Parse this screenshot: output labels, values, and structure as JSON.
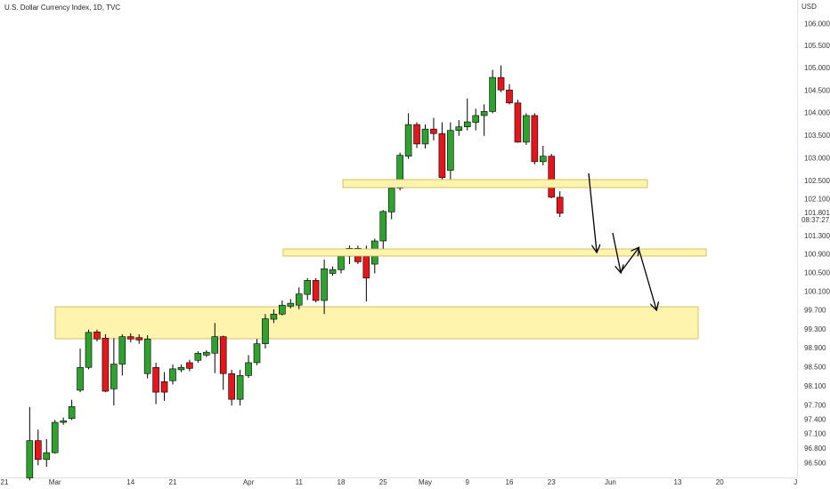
{
  "chart_data": {
    "type": "candlestick",
    "title": "U.S. Dollar Currency Index, 1D, TVC",
    "currency": "USD",
    "log_scale": true,
    "grid": false,
    "up_color": "#2ea12e",
    "down_color": "#e3161b",
    "ylim": [
      96.21,
      106.55
    ],
    "yticks": [
      {
        "value": 106.0,
        "label": "106.000"
      },
      {
        "value": 105.5,
        "label": "105.500"
      },
      {
        "value": 105.0,
        "label": "105.000"
      },
      {
        "value": 104.5,
        "label": "104.500"
      },
      {
        "value": 104.0,
        "label": "104.000"
      },
      {
        "value": 103.5,
        "label": "103.500"
      },
      {
        "value": 103.0,
        "label": "103.000"
      },
      {
        "value": 102.5,
        "label": "102.500"
      },
      {
        "value": 102.1,
        "label": "102.100"
      },
      {
        "value": 101.3,
        "label": "101.300"
      },
      {
        "value": 100.9,
        "label": "100.900"
      },
      {
        "value": 100.5,
        "label": "100.500"
      },
      {
        "value": 100.1,
        "label": "100.100"
      },
      {
        "value": 99.7,
        "label": "99.700"
      },
      {
        "value": 99.3,
        "label": "99.300"
      },
      {
        "value": 98.9,
        "label": "98.900"
      },
      {
        "value": 98.5,
        "label": "98.500"
      },
      {
        "value": 98.1,
        "label": "98.100"
      },
      {
        "value": 97.7,
        "label": "97.700"
      },
      {
        "value": 97.4,
        "label": "97.400"
      },
      {
        "value": 97.1,
        "label": "97.100"
      },
      {
        "value": 96.8,
        "label": "96.800"
      },
      {
        "value": 96.5,
        "label": "96.500"
      }
    ],
    "last_price": {
      "value": 101.801,
      "label": "101.801"
    },
    "countdown": "08:37:27",
    "categories": [
      "21",
      null,
      null,
      null,
      null,
      null,
      "Mar",
      null,
      null,
      null,
      null,
      null,
      null,
      null,
      null,
      "14",
      null,
      null,
      null,
      null,
      "21",
      null,
      null,
      null,
      null,
      null,
      null,
      null,
      null,
      "Apr",
      null,
      null,
      null,
      null,
      null,
      "11",
      null,
      null,
      null,
      null,
      "18",
      null,
      null,
      null,
      null,
      "25",
      null,
      null,
      null,
      null,
      "May",
      null,
      null,
      null,
      null,
      "9",
      null,
      null,
      null,
      null,
      "16",
      null,
      null,
      null,
      null,
      "23",
      null,
      null,
      null,
      null,
      null,
      null,
      "Jun",
      null,
      null,
      null,
      null,
      null,
      null,
      null,
      "13",
      null,
      null,
      null,
      null,
      "20",
      null,
      null,
      null,
      null,
      null,
      null,
      null,
      null,
      "J"
    ],
    "open": [
      null,
      null,
      null,
      96.2,
      96.97,
      96.58,
      96.72,
      97.35,
      97.43,
      98.02,
      98.5,
      99.25,
      99.12,
      98.05,
      98.57,
      99.15,
      99.13,
      98.37,
      98.5,
      98.2,
      98.22,
      98.45,
      98.6,
      98.65,
      98.76,
      98.8,
      99.15,
      98.37,
      97.83,
      98.33,
      98.6,
      99.0,
      99.52,
      99.63,
      99.8,
      99.82,
      100.05,
      100.35,
      99.92,
      100.5,
      100.58,
      100.87,
      101.04,
      101.02,
      100.7,
      101.2,
      101.83,
      102.35,
      103.05,
      103.75,
      103.32,
      103.65,
      103.55,
      102.74,
      103.62,
      103.7,
      103.8,
      103.95,
      104.04,
      104.8,
      104.52,
      104.23,
      103.36,
      103.95,
      102.93,
      103.05,
      102.15,
      null,
      null,
      null,
      null,
      null,
      null,
      null,
      null,
      null,
      null,
      null,
      null,
      null,
      null,
      null,
      null,
      null,
      null,
      null,
      null,
      null,
      null,
      null,
      null,
      null,
      null,
      null,
      null
    ],
    "high": [
      null,
      null,
      null,
      97.67,
      97.2,
      97.0,
      97.4,
      97.45,
      97.82,
      98.9,
      99.3,
      99.3,
      99.2,
      99.12,
      99.2,
      99.22,
      99.2,
      99.18,
      98.6,
      98.4,
      98.56,
      98.56,
      98.66,
      98.84,
      98.86,
      99.44,
      99.17,
      98.45,
      98.45,
      98.76,
      99.1,
      99.63,
      99.73,
      99.92,
      99.95,
      100.2,
      100.4,
      100.4,
      100.8,
      100.65,
      100.9,
      101.1,
      101.1,
      101.1,
      101.25,
      101.87,
      102.45,
      103.13,
      104.0,
      103.8,
      103.75,
      103.9,
      103.8,
      103.8,
      103.85,
      104.33,
      104.1,
      104.2,
      104.97,
      105.07,
      104.65,
      104.3,
      104.0,
      104.0,
      103.28,
      103.1,
      102.28,
      null,
      null,
      null,
      null,
      null,
      null,
      null,
      null,
      null,
      null,
      null,
      null,
      null,
      null,
      null,
      null,
      null,
      null,
      null,
      null,
      null,
      null,
      null,
      null,
      null,
      null,
      null,
      null
    ],
    "low": [
      null,
      null,
      null,
      96.15,
      96.46,
      96.43,
      96.7,
      97.3,
      97.4,
      97.98,
      98.46,
      99.05,
      97.98,
      97.7,
      98.33,
      99.03,
      99.0,
      98.27,
      97.73,
      97.8,
      98.14,
      98.4,
      98.42,
      98.6,
      98.72,
      98.38,
      98.03,
      97.7,
      97.7,
      98.28,
      98.55,
      98.9,
      99.44,
      99.6,
      99.75,
      99.73,
      99.93,
      99.88,
      99.63,
      100.45,
      100.5,
      100.7,
      100.7,
      99.9,
      100.5,
      101.0,
      101.67,
      102.3,
      102.99,
      103.23,
      103.22,
      103.4,
      102.53,
      102.45,
      103.5,
      103.62,
      103.62,
      103.5,
      104.0,
      104.47,
      104.2,
      103.35,
      103.3,
      102.87,
      102.85,
      102.13,
      101.72,
      null,
      null,
      null,
      null,
      null,
      null,
      null,
      null,
      null,
      null,
      null,
      null,
      null,
      null,
      null,
      null,
      null,
      null,
      null,
      null,
      null,
      null,
      null,
      null,
      null,
      null,
      null,
      null
    ],
    "close": [
      null,
      null,
      null,
      96.97,
      96.58,
      96.72,
      97.35,
      97.38,
      97.68,
      98.5,
      99.24,
      99.1,
      98.0,
      98.57,
      99.15,
      99.1,
      99.08,
      99.1,
      97.98,
      97.98,
      98.47,
      98.5,
      98.48,
      98.8,
      98.82,
      99.15,
      98.37,
      97.83,
      98.33,
      98.6,
      99.0,
      99.53,
      99.63,
      99.82,
      99.86,
      100.06,
      100.35,
      99.92,
      100.6,
      100.58,
      100.87,
      101.04,
      100.75,
      100.4,
      101.2,
      101.84,
      102.35,
      103.07,
      103.75,
      103.32,
      103.65,
      103.55,
      102.58,
      103.62,
      103.7,
      103.81,
      103.95,
      104.04,
      104.8,
      104.52,
      104.23,
      103.36,
      103.95,
      102.93,
      103.05,
      102.15,
      101.8,
      null,
      null,
      null,
      null,
      null,
      null,
      null,
      null,
      null,
      null,
      null,
      null,
      null,
      null,
      null,
      null,
      null,
      null,
      null,
      null,
      null,
      null,
      null,
      null,
      null,
      null,
      null,
      null
    ]
  }
}
